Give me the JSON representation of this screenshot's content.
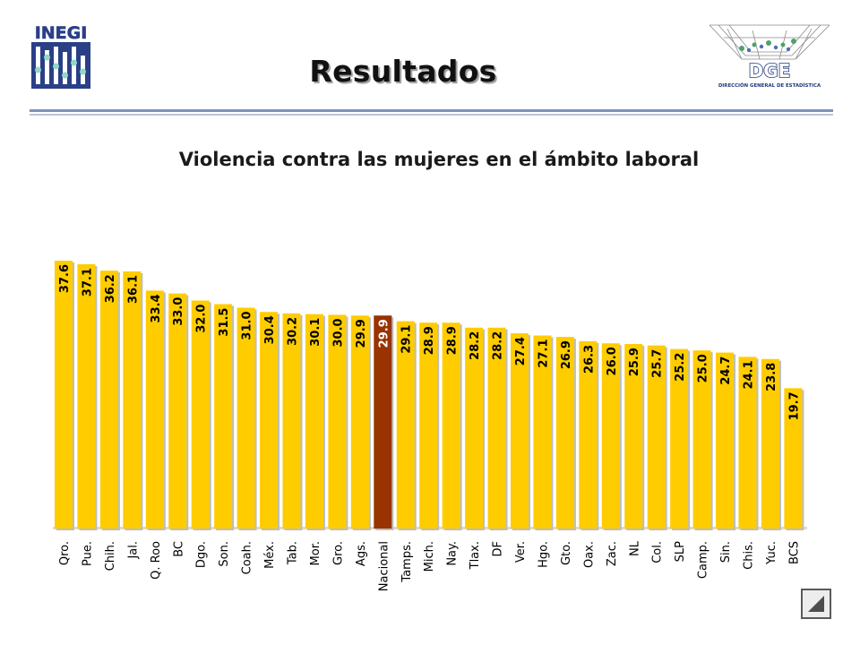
{
  "header": {
    "inegi_logo_text": "INEGI",
    "dge_logo_text": "DGE",
    "dge_logo_subtitle": "DIRECCIÓN GENERAL DE ESTADÍSTICA",
    "title": "Resultados"
  },
  "colors": {
    "bar": "#ffcc00",
    "highlight_bar": "#993300",
    "value_text": "#000000",
    "highlight_value_text": "#ffffff"
  },
  "nav": {
    "back_icon": "triangle-back-icon"
  },
  "chart_data": {
    "type": "bar",
    "title": "Violencia contra las mujeres en el ámbito laboral",
    "xlabel": "",
    "ylabel": "",
    "ylim": [
      0,
      40
    ],
    "grid": false,
    "legend": "none",
    "highlight_category": "Nacional",
    "categories": [
      "Qro.",
      "Pue.",
      "Chih.",
      "Jal.",
      "Q. Roo",
      "BC",
      "Dgo.",
      "Son.",
      "Coah.",
      "Méx.",
      "Tab.",
      "Mor.",
      "Gro.",
      "Ags.",
      "Nacional",
      "Tamps.",
      "Mich.",
      "Nay.",
      "Tlax.",
      "DF",
      "Ver.",
      "Hgo.",
      "Gto.",
      "Oax.",
      "Zac.",
      "NL",
      "Col.",
      "SLP",
      "Camp.",
      "Sin.",
      "Chis.",
      "Yuc.",
      "BCS"
    ],
    "values": [
      37.6,
      37.1,
      36.2,
      36.1,
      33.4,
      33.0,
      32.0,
      31.5,
      31.0,
      30.4,
      30.2,
      30.1,
      30.0,
      29.9,
      29.9,
      29.1,
      28.9,
      28.9,
      28.2,
      28.2,
      27.4,
      27.1,
      26.9,
      26.3,
      26.0,
      25.9,
      25.7,
      25.2,
      25.0,
      24.7,
      24.1,
      23.8,
      19.7
    ],
    "labels": [
      "37.6",
      "37.1",
      "36.2",
      "36.1",
      "33.4",
      "33.0",
      "32.0",
      "31.5",
      "31.0",
      "30.4",
      "30.2",
      "30.1",
      "30.0",
      "29.9",
      "29.9",
      "29.1",
      "28.9",
      "28.9",
      "28.2",
      "28.2",
      "27.4",
      "27.1",
      "26.9",
      "26.3",
      "26.0",
      "25.9",
      "25.7",
      "25.2",
      "25.0",
      "24.7",
      "24.1",
      "23.8",
      "19.7"
    ]
  }
}
